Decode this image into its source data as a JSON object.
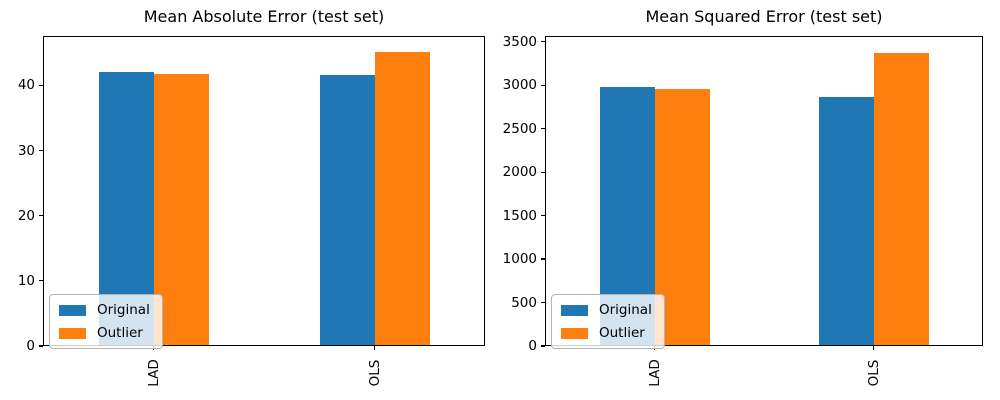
{
  "figure": {
    "background": "#ffffff"
  },
  "chart_data": [
    {
      "type": "bar",
      "title": "Mean Absolute Error (test set)",
      "categories": [
        "LAD",
        "OLS"
      ],
      "series": [
        {
          "name": "Original",
          "color": "#1f77b4",
          "values": [
            42.0,
            41.6
          ]
        },
        {
          "name": "Outlier",
          "color": "#ff7f0e",
          "values": [
            41.8,
            45.1
          ]
        }
      ],
      "xlabel": "",
      "ylabel": "",
      "ylim": [
        0,
        47.6
      ],
      "yticks": [
        0,
        10,
        20,
        30,
        40
      ],
      "grid": false,
      "legend_position": "lower left",
      "xtick_rotation": 90
    },
    {
      "type": "bar",
      "title": "Mean Squared Error (test set)",
      "categories": [
        "LAD",
        "OLS"
      ],
      "series": [
        {
          "name": "Original",
          "color": "#1f77b4",
          "values": [
            2975,
            2865
          ]
        },
        {
          "name": "Outlier",
          "color": "#ff7f0e",
          "values": [
            2960,
            3375
          ]
        }
      ],
      "xlabel": "",
      "ylabel": "",
      "ylim": [
        0,
        3566
      ],
      "yticks": [
        0,
        500,
        1000,
        1500,
        2000,
        2500,
        3000,
        3500
      ],
      "grid": false,
      "legend_position": "lower left",
      "xtick_rotation": 90
    }
  ]
}
